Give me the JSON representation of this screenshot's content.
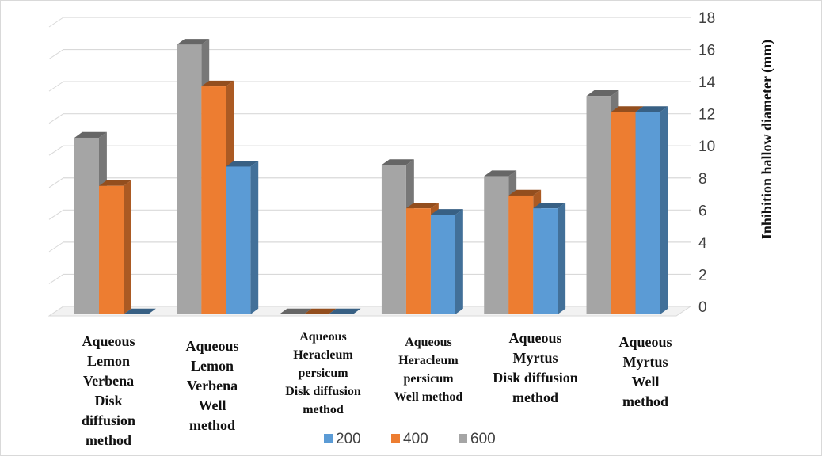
{
  "chart_data": {
    "type": "bar",
    "style": "3d-clustered-column",
    "categories": [
      [
        "Aqueous",
        "Lemon",
        "Verbena",
        "Disk",
        "diffusion",
        "method"
      ],
      [
        "Aqueous",
        "Lemon",
        "Verbena",
        "Well",
        "method"
      ],
      [
        "Aqueous",
        "Heracleum",
        "persicum",
        "Disk diffusion",
        "method"
      ],
      [
        "Aqueous",
        "Heracleum",
        "persicum",
        "Well method"
      ],
      [
        "Aqueous",
        "Myrtus",
        "Disk diffusion",
        "method"
      ],
      [
        "Aqueous",
        "Myrtus",
        "Well",
        "method"
      ]
    ],
    "series": [
      {
        "name": "600",
        "color": "#a5a5a5",
        "values": [
          11.0,
          16.8,
          0,
          9.3,
          8.6,
          13.6
        ]
      },
      {
        "name": "400",
        "color": "#ed7d31",
        "values": [
          8.0,
          14.2,
          0,
          6.6,
          7.4,
          12.6
        ]
      },
      {
        "name": "200",
        "color": "#5b9bd5",
        "values": [
          0,
          9.2,
          0,
          6.2,
          6.6,
          12.6
        ]
      }
    ],
    "legend_order": [
      "200",
      "400",
      "600"
    ],
    "legend_position": "bottom",
    "ylabel": "Inhibition hallow diameter (mm)",
    "yaxis_side": "right",
    "ylim": [
      0,
      18
    ],
    "yticks": [
      0,
      2,
      4,
      6,
      8,
      10,
      12,
      14,
      16,
      18
    ],
    "grid": true
  }
}
